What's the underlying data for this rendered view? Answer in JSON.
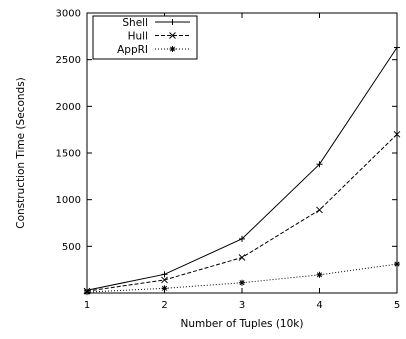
{
  "chart_data": {
    "type": "line",
    "xlabel": "Number of Tuples (10k)",
    "ylabel": "Construction Time (Seconds)",
    "x": [
      1,
      2,
      3,
      4,
      5
    ],
    "xlim": [
      1,
      5
    ],
    "ylim": [
      0,
      3000
    ],
    "xticks": [
      1,
      2,
      3,
      4,
      5
    ],
    "yticks": [
      500,
      1000,
      1500,
      2000,
      2500,
      3000
    ],
    "grid": false,
    "legend": "top-left",
    "series": [
      {
        "name": "Shell",
        "values": [
          30,
          200,
          580,
          1380,
          2630
        ],
        "line_style": "solid",
        "marker": "plus"
      },
      {
        "name": "Hull",
        "values": [
          20,
          140,
          380,
          890,
          1700
        ],
        "line_style": "dashed",
        "marker": "cross"
      },
      {
        "name": "AppRI",
        "values": [
          10,
          50,
          110,
          195,
          310
        ],
        "line_style": "dotted",
        "marker": "star"
      }
    ]
  }
}
